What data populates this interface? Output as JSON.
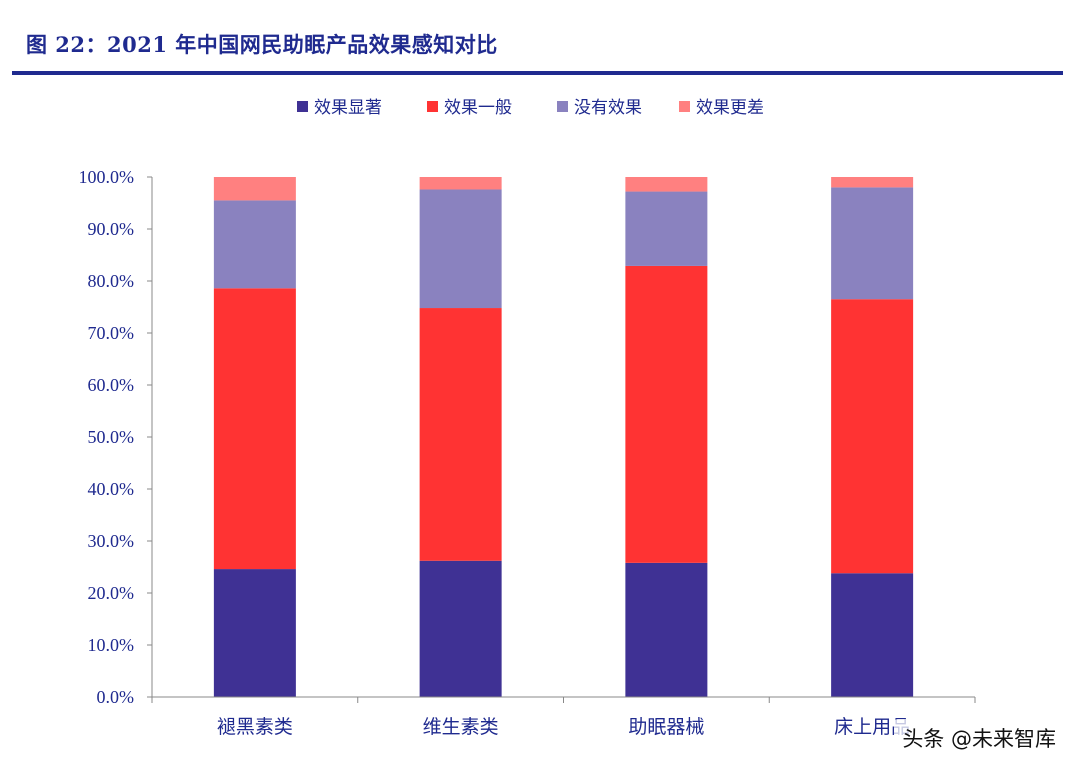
{
  "figure": {
    "title": "图 22：2021 年中国网民助眠产品效果感知对比",
    "watermark": "头条 @未来智库"
  },
  "colors": {
    "title": "#1f2a8f",
    "axis_text": "#1f2a8f",
    "series": [
      "#3f3194",
      "#ff3333",
      "#8a82bf",
      "#ff8080"
    ]
  },
  "chart_data": {
    "type": "bar",
    "stacked": true,
    "categories": [
      "褪黑素类",
      "维生素类",
      "助眠器械",
      "床上用品"
    ],
    "series": [
      {
        "name": "效果显著",
        "values": [
          24.6,
          26.2,
          25.8,
          23.8
        ]
      },
      {
        "name": "效果一般",
        "values": [
          54.0,
          48.6,
          57.1,
          52.7
        ]
      },
      {
        "name": "没有效果",
        "values": [
          16.9,
          22.8,
          14.3,
          21.5
        ]
      },
      {
        "name": "效果更差",
        "values": [
          4.5,
          2.4,
          2.8,
          2.0
        ]
      }
    ],
    "ylim": [
      0,
      100
    ],
    "yticks": [
      "0.0%",
      "10.0%",
      "20.0%",
      "30.0%",
      "40.0%",
      "50.0%",
      "60.0%",
      "70.0%",
      "80.0%",
      "90.0%",
      "100.0%"
    ],
    "legend_position": "top",
    "grid": false
  }
}
